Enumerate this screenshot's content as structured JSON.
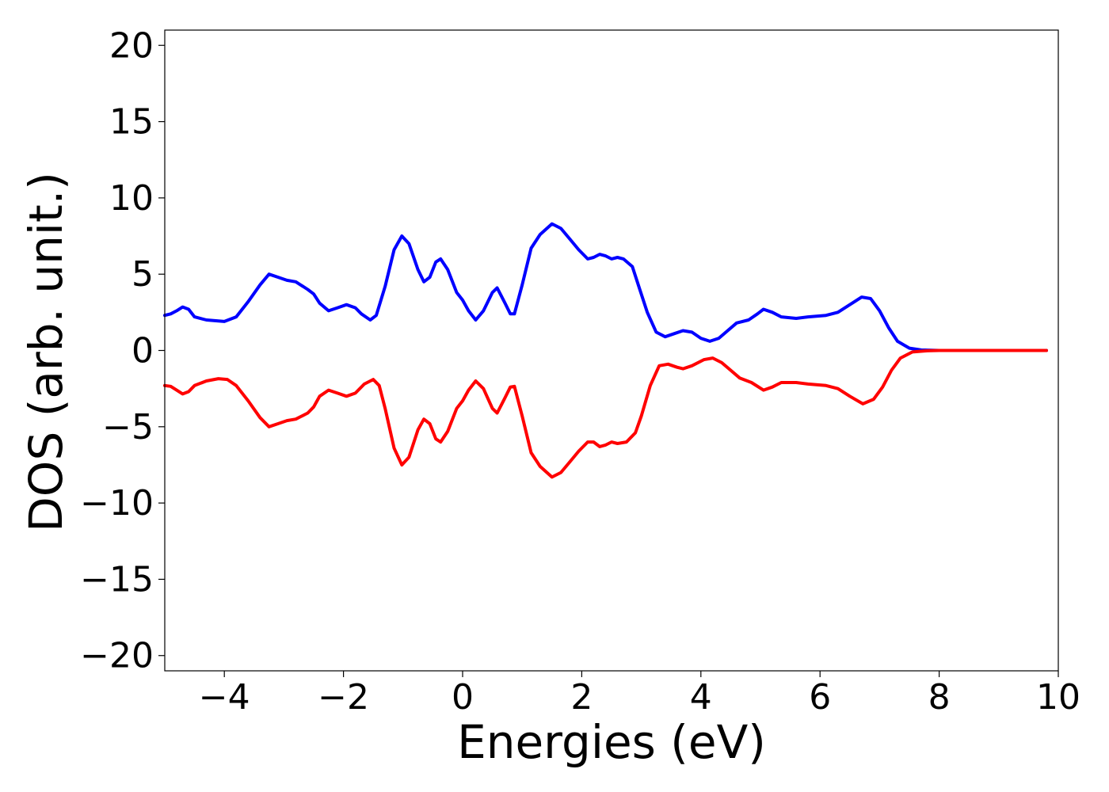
{
  "chart_data": {
    "type": "line",
    "xlabel": "Energies (eV)",
    "ylabel": "DOS (arb. unit.)",
    "xlim": [
      -5,
      10
    ],
    "ylim": [
      -21,
      21
    ],
    "xticks": [
      -4,
      -2,
      0,
      2,
      4,
      6,
      8,
      10
    ],
    "yticks": [
      -20,
      -15,
      -10,
      -5,
      0,
      5,
      10,
      15,
      20
    ],
    "grid": false,
    "legend": "none",
    "series": [
      {
        "color": "#0000ff",
        "points": [
          [
            -5.0,
            2.3
          ],
          [
            -4.9,
            2.4
          ],
          [
            -4.8,
            2.6
          ],
          [
            -4.7,
            2.85
          ],
          [
            -4.6,
            2.7
          ],
          [
            -4.5,
            2.2
          ],
          [
            -4.3,
            2.0
          ],
          [
            -4.0,
            1.9
          ],
          [
            -3.8,
            2.2
          ],
          [
            -3.6,
            3.2
          ],
          [
            -3.4,
            4.3
          ],
          [
            -3.25,
            5.0
          ],
          [
            -3.1,
            4.8
          ],
          [
            -2.95,
            4.6
          ],
          [
            -2.8,
            4.5
          ],
          [
            -2.6,
            4.0
          ],
          [
            -2.5,
            3.7
          ],
          [
            -2.4,
            3.1
          ],
          [
            -2.25,
            2.6
          ],
          [
            -2.1,
            2.8
          ],
          [
            -1.95,
            3.0
          ],
          [
            -1.8,
            2.8
          ],
          [
            -1.7,
            2.4
          ],
          [
            -1.55,
            2.0
          ],
          [
            -1.45,
            2.3
          ],
          [
            -1.3,
            4.2
          ],
          [
            -1.15,
            6.6
          ],
          [
            -1.02,
            7.5
          ],
          [
            -0.9,
            7.0
          ],
          [
            -0.75,
            5.3
          ],
          [
            -0.65,
            4.5
          ],
          [
            -0.55,
            4.8
          ],
          [
            -0.45,
            5.8
          ],
          [
            -0.37,
            6.0
          ],
          [
            -0.25,
            5.3
          ],
          [
            -0.1,
            3.8
          ],
          [
            0.0,
            3.3
          ],
          [
            0.1,
            2.6
          ],
          [
            0.22,
            2.0
          ],
          [
            0.35,
            2.6
          ],
          [
            0.5,
            3.8
          ],
          [
            0.58,
            4.1
          ],
          [
            0.7,
            3.2
          ],
          [
            0.8,
            2.4
          ],
          [
            0.87,
            2.4
          ],
          [
            1.0,
            4.3
          ],
          [
            1.15,
            6.7
          ],
          [
            1.3,
            7.6
          ],
          [
            1.5,
            8.3
          ],
          [
            1.65,
            8.0
          ],
          [
            1.8,
            7.3
          ],
          [
            1.95,
            6.6
          ],
          [
            2.1,
            6.0
          ],
          [
            2.2,
            6.1
          ],
          [
            2.3,
            6.3
          ],
          [
            2.4,
            6.2
          ],
          [
            2.5,
            6.0
          ],
          [
            2.6,
            6.1
          ],
          [
            2.7,
            6.0
          ],
          [
            2.85,
            5.5
          ],
          [
            2.95,
            4.3
          ],
          [
            3.1,
            2.5
          ],
          [
            3.25,
            1.2
          ],
          [
            3.4,
            0.9
          ],
          [
            3.55,
            1.1
          ],
          [
            3.7,
            1.3
          ],
          [
            3.85,
            1.2
          ],
          [
            4.0,
            0.8
          ],
          [
            4.15,
            0.6
          ],
          [
            4.3,
            0.8
          ],
          [
            4.45,
            1.3
          ],
          [
            4.6,
            1.8
          ],
          [
            4.8,
            2.0
          ],
          [
            4.95,
            2.4
          ],
          [
            5.05,
            2.7
          ],
          [
            5.2,
            2.5
          ],
          [
            5.35,
            2.2
          ],
          [
            5.6,
            2.1
          ],
          [
            5.8,
            2.2
          ],
          [
            6.1,
            2.3
          ],
          [
            6.3,
            2.5
          ],
          [
            6.5,
            3.0
          ],
          [
            6.7,
            3.5
          ],
          [
            6.85,
            3.4
          ],
          [
            7.0,
            2.6
          ],
          [
            7.15,
            1.5
          ],
          [
            7.3,
            0.6
          ],
          [
            7.5,
            0.15
          ],
          [
            7.7,
            0.03
          ],
          [
            8.0,
            0.0
          ],
          [
            9.0,
            0.0
          ],
          [
            9.8,
            0.0
          ]
        ]
      },
      {
        "color": "#ff0000",
        "points": [
          [
            -5.0,
            -2.3
          ],
          [
            -4.9,
            -2.35
          ],
          [
            -4.8,
            -2.6
          ],
          [
            -4.7,
            -2.85
          ],
          [
            -4.6,
            -2.7
          ],
          [
            -4.5,
            -2.3
          ],
          [
            -4.3,
            -2.0
          ],
          [
            -4.1,
            -1.85
          ],
          [
            -3.95,
            -1.9
          ],
          [
            -3.8,
            -2.3
          ],
          [
            -3.6,
            -3.3
          ],
          [
            -3.4,
            -4.4
          ],
          [
            -3.25,
            -5.0
          ],
          [
            -3.1,
            -4.8
          ],
          [
            -2.95,
            -4.6
          ],
          [
            -2.8,
            -4.5
          ],
          [
            -2.6,
            -4.1
          ],
          [
            -2.5,
            -3.7
          ],
          [
            -2.4,
            -3.0
          ],
          [
            -2.25,
            -2.6
          ],
          [
            -2.1,
            -2.8
          ],
          [
            -1.95,
            -3.0
          ],
          [
            -1.8,
            -2.8
          ],
          [
            -1.65,
            -2.2
          ],
          [
            -1.5,
            -1.9
          ],
          [
            -1.4,
            -2.3
          ],
          [
            -1.3,
            -3.8
          ],
          [
            -1.15,
            -6.4
          ],
          [
            -1.02,
            -7.5
          ],
          [
            -0.9,
            -7.0
          ],
          [
            -0.75,
            -5.2
          ],
          [
            -0.65,
            -4.5
          ],
          [
            -0.55,
            -4.8
          ],
          [
            -0.45,
            -5.8
          ],
          [
            -0.37,
            -6.0
          ],
          [
            -0.25,
            -5.3
          ],
          [
            -0.1,
            -3.8
          ],
          [
            0.0,
            -3.3
          ],
          [
            0.1,
            -2.6
          ],
          [
            0.22,
            -2.0
          ],
          [
            0.35,
            -2.5
          ],
          [
            0.5,
            -3.8
          ],
          [
            0.58,
            -4.1
          ],
          [
            0.7,
            -3.2
          ],
          [
            0.8,
            -2.4
          ],
          [
            0.87,
            -2.35
          ],
          [
            1.0,
            -4.3
          ],
          [
            1.15,
            -6.7
          ],
          [
            1.3,
            -7.6
          ],
          [
            1.5,
            -8.3
          ],
          [
            1.65,
            -8.0
          ],
          [
            1.8,
            -7.3
          ],
          [
            1.95,
            -6.6
          ],
          [
            2.1,
            -6.0
          ],
          [
            2.2,
            -6.0
          ],
          [
            2.3,
            -6.3
          ],
          [
            2.4,
            -6.2
          ],
          [
            2.5,
            -6.0
          ],
          [
            2.6,
            -6.1
          ],
          [
            2.75,
            -6.0
          ],
          [
            2.9,
            -5.4
          ],
          [
            3.0,
            -4.3
          ],
          [
            3.15,
            -2.3
          ],
          [
            3.3,
            -1.0
          ],
          [
            3.45,
            -0.9
          ],
          [
            3.6,
            -1.1
          ],
          [
            3.7,
            -1.2
          ],
          [
            3.85,
            -1.0
          ],
          [
            4.05,
            -0.6
          ],
          [
            4.2,
            -0.5
          ],
          [
            4.35,
            -0.8
          ],
          [
            4.5,
            -1.3
          ],
          [
            4.65,
            -1.8
          ],
          [
            4.85,
            -2.1
          ],
          [
            5.05,
            -2.6
          ],
          [
            5.2,
            -2.4
          ],
          [
            5.35,
            -2.1
          ],
          [
            5.6,
            -2.1
          ],
          [
            5.8,
            -2.2
          ],
          [
            6.1,
            -2.3
          ],
          [
            6.3,
            -2.5
          ],
          [
            6.5,
            -3.0
          ],
          [
            6.72,
            -3.5
          ],
          [
            6.9,
            -3.2
          ],
          [
            7.05,
            -2.4
          ],
          [
            7.2,
            -1.3
          ],
          [
            7.35,
            -0.5
          ],
          [
            7.55,
            -0.1
          ],
          [
            7.8,
            -0.02
          ],
          [
            8.0,
            0.0
          ],
          [
            9.0,
            0.0
          ],
          [
            9.8,
            0.0
          ]
        ]
      }
    ]
  }
}
